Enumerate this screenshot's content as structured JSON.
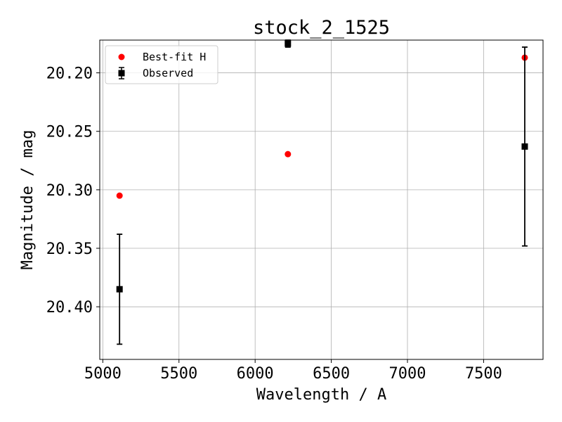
{
  "chart_data": {
    "type": "scatter",
    "title": "stock_2_1525",
    "xlabel": "Wavelength / A",
    "ylabel": "Magnitude / mag",
    "xlim": [
      4980,
      7890
    ],
    "ylim": [
      20.445,
      20.172
    ],
    "y_inverted": true,
    "grid": true,
    "legend_position": "top-left",
    "xticks": [
      5000,
      5500,
      6000,
      6500,
      7000,
      7500
    ],
    "xtick_labels": [
      "5000",
      "5500",
      "6000",
      "6500",
      "7000",
      "7500"
    ],
    "yticks": [
      20.2,
      20.25,
      20.3,
      20.35,
      20.4
    ],
    "ytick_labels": [
      "20.20",
      "20.25",
      "20.30",
      "20.35",
      "20.40"
    ],
    "series": [
      {
        "name": "Best-fit H",
        "marker": "circle",
        "color": "#ff0000",
        "points": [
          {
            "x": 5110,
            "y": 20.305
          },
          {
            "x": 6215,
            "y": 20.2695
          },
          {
            "x": 7770,
            "y": 20.187
          }
        ]
      },
      {
        "name": "Observed",
        "marker": "square",
        "color": "#000000",
        "errorbars": true,
        "points": [
          {
            "x": 5110,
            "y": 20.385,
            "yerr": 0.047
          },
          {
            "x": 6215,
            "y": 20.175,
            "yerr": 0.003
          },
          {
            "x": 7770,
            "y": 20.263,
            "yerr": 0.085
          }
        ]
      }
    ]
  }
}
